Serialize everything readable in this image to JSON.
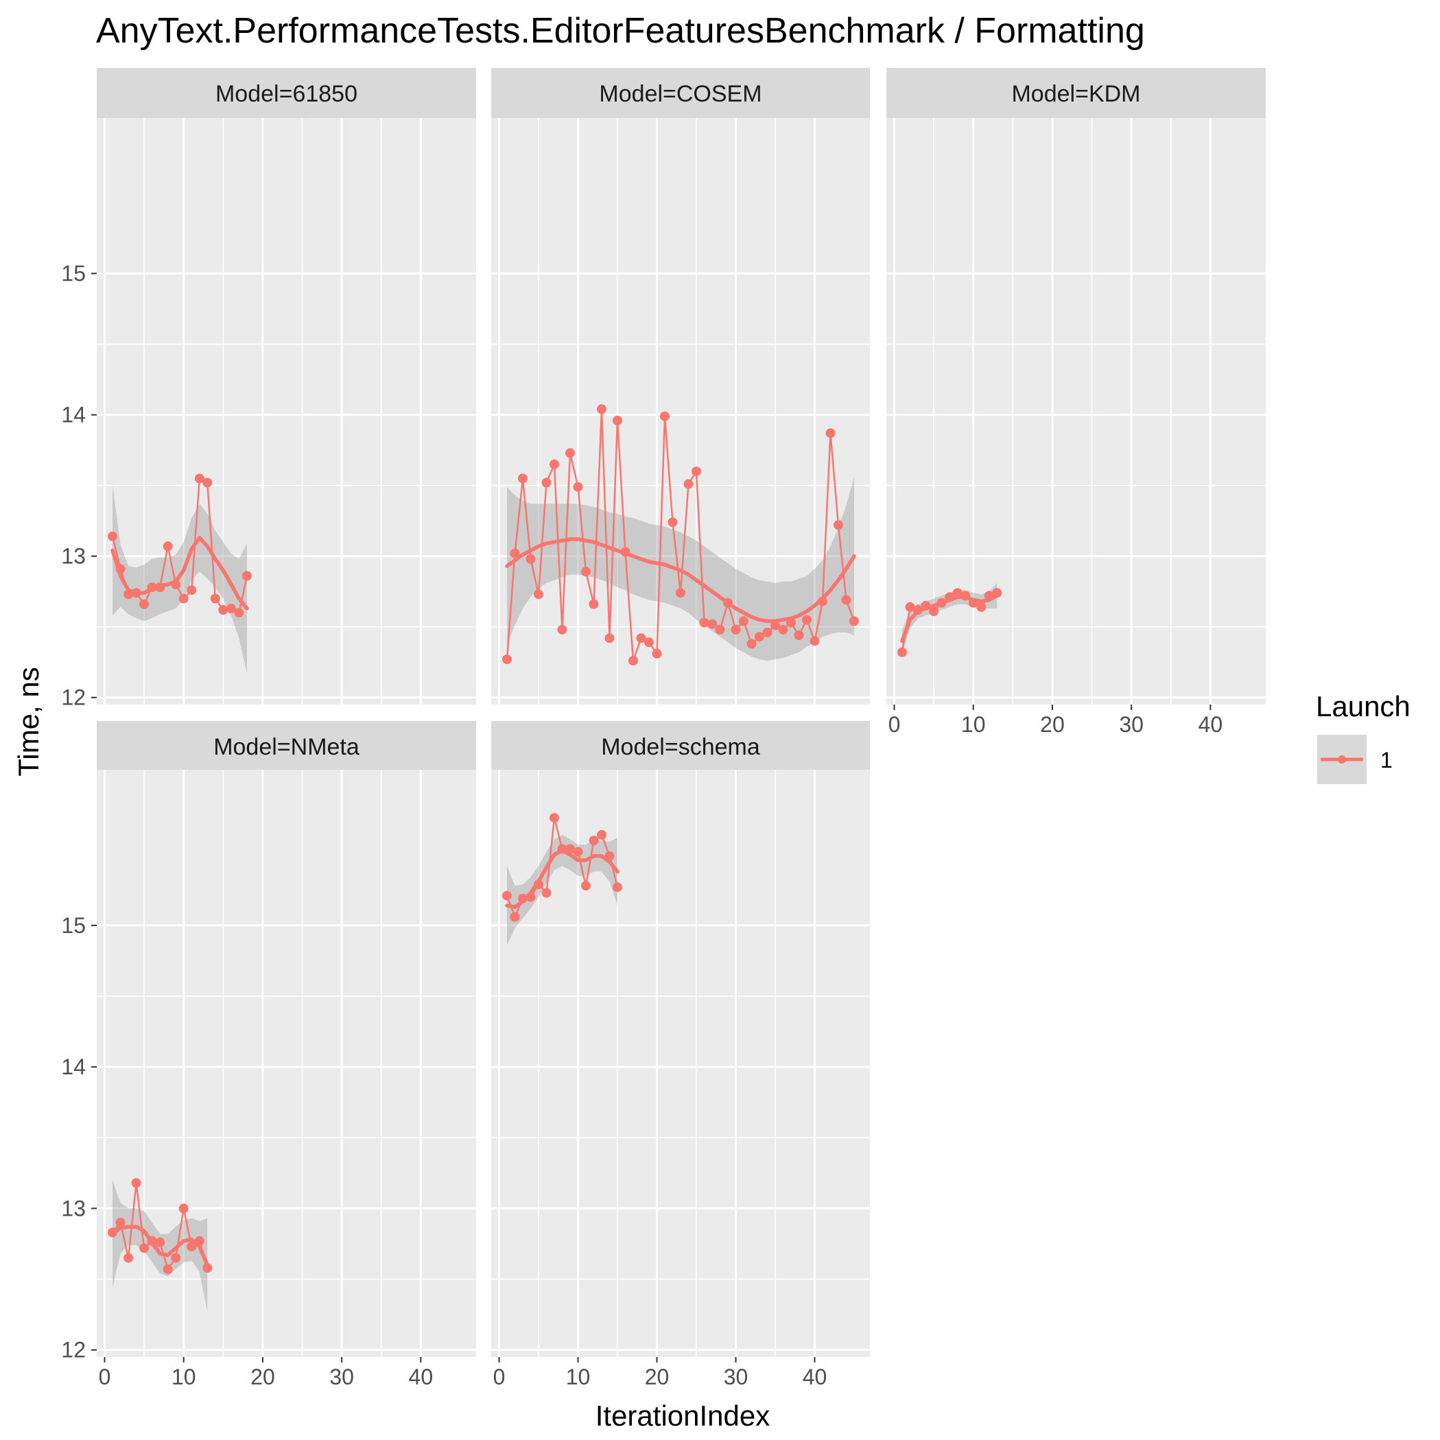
{
  "chart_data": {
    "type": "line",
    "title": "AnyText.PerformanceTests.EditorFeaturesBenchmark / Formatting",
    "xlabel": "IterationIndex",
    "ylabel": "Time, ns",
    "xlim": [
      -1,
      47
    ],
    "x_ticks": [
      0,
      10,
      20,
      30,
      40
    ],
    "grid": true,
    "legend": {
      "title": "Launch",
      "position": "right",
      "entries": [
        "1"
      ]
    },
    "colors": {
      "series": "#F8766D",
      "ribbon": "#999999",
      "panel_bg": "#EBEBEB",
      "strip_bg": "#D9D9D9",
      "grid": "#FFFFFF"
    },
    "rows": [
      {
        "ylim": [
          11.95,
          16.1
        ],
        "y_ticks": [
          12,
          13,
          14,
          15
        ]
      },
      {
        "ylim": [
          11.95,
          16.1
        ],
        "y_ticks": [
          12,
          13,
          14,
          15
        ]
      }
    ],
    "panels": [
      {
        "label": "Model=61850",
        "row": 0,
        "col": 0,
        "show_x_ticks": false,
        "series": [
          {
            "name": "1",
            "x": [
              1,
              2,
              3,
              4,
              5,
              6,
              7,
              8,
              9,
              10,
              11,
              12,
              13,
              14,
              15,
              16,
              17,
              18
            ],
            "y": [
              13.14,
              12.91,
              12.73,
              12.74,
              12.66,
              12.78,
              12.78,
              13.07,
              12.8,
              12.7,
              12.76,
              13.55,
              13.52,
              12.7,
              12.62,
              12.63,
              12.6,
              12.86
            ],
            "smooth": [
              13.04,
              12.86,
              12.76,
              12.74,
              12.74,
              12.77,
              12.79,
              12.8,
              12.82,
              12.9,
              13.05,
              13.13,
              13.07,
              12.98,
              12.9,
              12.8,
              12.7,
              12.63
            ],
            "se": [
              0.46,
              0.22,
              0.17,
              0.18,
              0.2,
              0.21,
              0.2,
              0.19,
              0.19,
              0.2,
              0.22,
              0.24,
              0.23,
              0.2,
              0.2,
              0.22,
              0.28,
              0.46
            ]
          }
        ]
      },
      {
        "label": "Model=COSEM",
        "row": 0,
        "col": 1,
        "show_x_ticks": false,
        "series": [
          {
            "name": "1",
            "x": [
              1,
              2,
              3,
              4,
              5,
              6,
              7,
              8,
              9,
              10,
              11,
              12,
              13,
              14,
              15,
              16,
              17,
              18,
              19,
              20,
              21,
              22,
              23,
              24,
              25,
              26,
              27,
              28,
              29,
              30,
              31,
              32,
              33,
              34,
              35,
              36,
              37,
              38,
              39,
              40,
              41,
              42,
              43,
              44,
              45
            ],
            "y": [
              12.27,
              13.02,
              13.55,
              12.98,
              12.73,
              13.52,
              13.65,
              12.48,
              13.73,
              13.49,
              12.89,
              12.66,
              14.04,
              12.42,
              13.96,
              13.03,
              12.26,
              12.42,
              12.39,
              12.31,
              13.99,
              13.24,
              12.74,
              13.51,
              13.6,
              12.53,
              12.52,
              12.48,
              12.67,
              12.48,
              12.54,
              12.38,
              12.43,
              12.46,
              12.51,
              12.48,
              12.53,
              12.44,
              12.55,
              12.4,
              12.68,
              13.87,
              13.22,
              12.69,
              12.54
            ],
            "smooth": [
              12.93,
              12.97,
              13.01,
              13.04,
              13.07,
              13.09,
              13.1,
              13.11,
              13.12,
              13.12,
              13.11,
              13.1,
              13.08,
              13.06,
              13.04,
              13.02,
              13.0,
              12.98,
              12.96,
              12.95,
              12.94,
              12.92,
              12.9,
              12.87,
              12.83,
              12.79,
              12.75,
              12.71,
              12.67,
              12.63,
              12.6,
              12.57,
              12.55,
              12.54,
              12.54,
              12.55,
              12.56,
              12.58,
              12.61,
              12.65,
              12.7,
              12.76,
              12.83,
              12.91,
              13.0
            ],
            "se": [
              0.56,
              0.46,
              0.38,
              0.33,
              0.3,
              0.28,
              0.27,
              0.26,
              0.25,
              0.25,
              0.25,
              0.25,
              0.25,
              0.25,
              0.26,
              0.26,
              0.27,
              0.27,
              0.27,
              0.27,
              0.27,
              0.27,
              0.27,
              0.27,
              0.28,
              0.28,
              0.28,
              0.28,
              0.28,
              0.28,
              0.28,
              0.28,
              0.28,
              0.28,
              0.27,
              0.27,
              0.26,
              0.26,
              0.25,
              0.26,
              0.27,
              0.31,
              0.37,
              0.45,
              0.56
            ]
          }
        ]
      },
      {
        "label": "Model=KDM",
        "row": 0,
        "col": 2,
        "show_x_ticks": true,
        "series": [
          {
            "name": "1",
            "x": [
              1,
              2,
              3,
              4,
              5,
              6,
              7,
              8,
              9,
              10,
              11,
              12,
              13
            ],
            "y": [
              12.32,
              12.64,
              12.62,
              12.65,
              12.61,
              12.67,
              12.71,
              12.74,
              12.72,
              12.67,
              12.64,
              12.72,
              12.74
            ],
            "smooth": [
              12.4,
              12.55,
              12.61,
              12.63,
              12.65,
              12.67,
              12.69,
              12.71,
              12.71,
              12.69,
              12.68,
              12.69,
              12.72
            ],
            "se": [
              0.08,
              0.06,
              0.05,
              0.05,
              0.05,
              0.05,
              0.05,
              0.05,
              0.05,
              0.05,
              0.05,
              0.06,
              0.09
            ]
          }
        ]
      },
      {
        "label": "Model=NMeta",
        "row": 1,
        "col": 0,
        "show_x_ticks": true,
        "series": [
          {
            "name": "1",
            "x": [
              1,
              2,
              3,
              4,
              5,
              6,
              7,
              8,
              9,
              10,
              11,
              12,
              13
            ],
            "y": [
              12.83,
              12.9,
              12.65,
              13.18,
              12.72,
              12.77,
              12.76,
              12.57,
              12.65,
              13.0,
              12.73,
              12.77,
              12.58
            ],
            "smooth": [
              12.82,
              12.86,
              12.87,
              12.87,
              12.84,
              12.76,
              12.68,
              12.67,
              12.72,
              12.77,
              12.78,
              12.73,
              12.6
            ],
            "se": [
              0.38,
              0.18,
              0.13,
              0.13,
              0.14,
              0.14,
              0.14,
              0.15,
              0.15,
              0.15,
              0.15,
              0.18,
              0.33
            ]
          }
        ]
      },
      {
        "label": "Model=schema",
        "row": 1,
        "col": 1,
        "show_x_ticks": true,
        "series": [
          {
            "name": "1",
            "x": [
              1,
              2,
              3,
              4,
              5,
              6,
              7,
              8,
              9,
              10,
              11,
              12,
              13,
              14,
              15
            ],
            "y": [
              15.21,
              15.06,
              15.19,
              15.2,
              15.29,
              15.23,
              15.76,
              15.54,
              15.54,
              15.52,
              15.28,
              15.6,
              15.64,
              15.49,
              15.27
            ],
            "smooth": [
              15.14,
              15.13,
              15.17,
              15.23,
              15.31,
              15.41,
              15.5,
              15.53,
              15.5,
              15.46,
              15.46,
              15.49,
              15.49,
              15.45,
              15.38
            ],
            "se": [
              0.28,
              0.15,
              0.12,
              0.11,
              0.11,
              0.11,
              0.11,
              0.11,
              0.11,
              0.11,
              0.11,
              0.11,
              0.11,
              0.14,
              0.24
            ]
          }
        ]
      }
    ]
  }
}
